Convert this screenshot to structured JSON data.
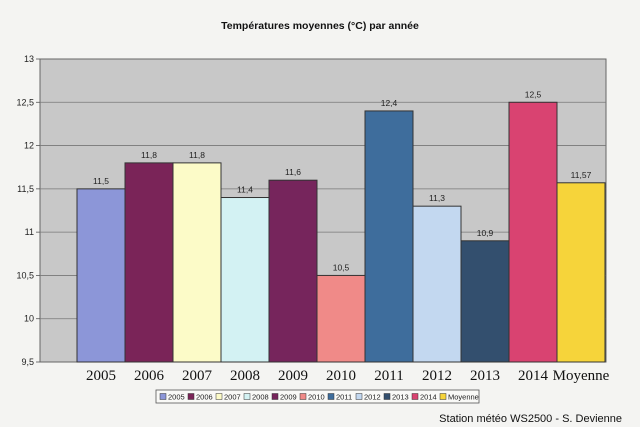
{
  "chart_data": {
    "type": "bar",
    "title": "Températures moyennes (°C) par année",
    "categories": [
      "2005",
      "2006",
      "2007",
      "2008",
      "2009",
      "2010",
      "2011",
      "2012",
      "2013",
      "2014",
      "Moyenne"
    ],
    "values": [
      11.5,
      11.8,
      11.8,
      11.4,
      11.6,
      10.5,
      12.4,
      11.3,
      10.9,
      12.5,
      11.57
    ],
    "data_labels": [
      "11,5",
      "11,8",
      "11,8",
      "11,4",
      "11,6",
      "10,5",
      "12,4",
      "11,3",
      "10,9",
      "12,5",
      "11,57"
    ],
    "colors": [
      "#8c96d8",
      "#7a2458",
      "#fcfbc8",
      "#d3f2f3",
      "#76255c",
      "#f08a88",
      "#3e6d9c",
      "#c3d8f0",
      "#334f6e",
      "#d94371",
      "#f6d43a"
    ],
    "ylim": [
      9.5,
      13
    ],
    "y_ticks": [
      9.5,
      10,
      10.5,
      11,
      11.5,
      12,
      12.5,
      13
    ],
    "y_tick_labels": [
      "9,5",
      "10",
      "10,5",
      "11",
      "11,5",
      "12",
      "12,5",
      "13"
    ],
    "grid": true,
    "legend": "bottom",
    "legend_entries": [
      "2005",
      "2006",
      "2007",
      "2008",
      "2009",
      "2010",
      "2011",
      "2012",
      "2013",
      "2014",
      "Moyenne"
    ],
    "plot_background": "#c8c8c8"
  },
  "credit": "Station météo WS2500 - S. Devienne"
}
